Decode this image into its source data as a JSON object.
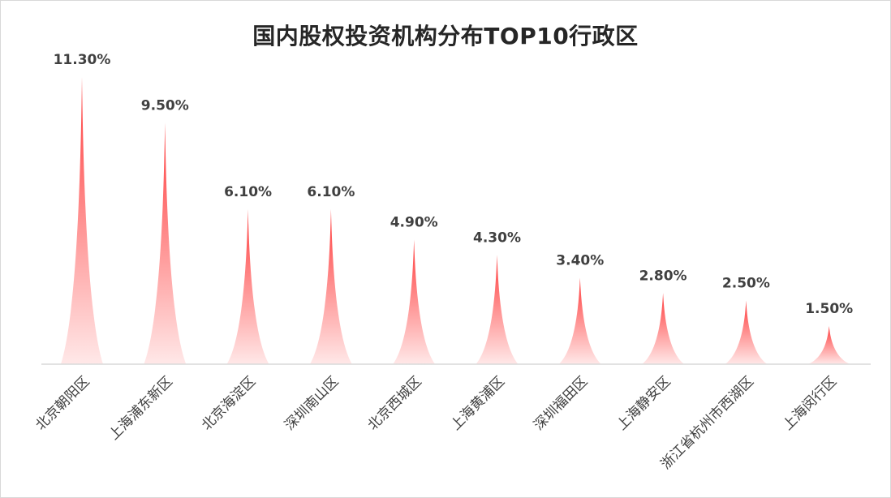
{
  "chart_data": {
    "type": "bar",
    "title": "国内股权投资机构分布TOP10行政区",
    "categories": [
      "北京朝阳区",
      "上海浦东新区",
      "北京海淀区",
      "深圳南山区",
      "北京西城区",
      "上海黄浦区",
      "深圳福田区",
      "上海静安区",
      "浙江省杭州市西湖区",
      "上海闵行区"
    ],
    "values": [
      11.3,
      9.5,
      6.1,
      6.1,
      4.9,
      4.3,
      3.4,
      2.8,
      2.5,
      1.5
    ],
    "value_labels": [
      "11.30%",
      "9.50%",
      "6.10%",
      "6.10%",
      "4.90%",
      "4.30%",
      "3.40%",
      "2.80%",
      "2.50%",
      "1.50%"
    ],
    "ylim": [
      0,
      12
    ],
    "grid": false,
    "legend": "none",
    "bar_shape": "peak",
    "colors": {
      "top": "#ff3b3b",
      "bottom": "#ffe8e8",
      "axis": "#d9d9d9"
    }
  }
}
